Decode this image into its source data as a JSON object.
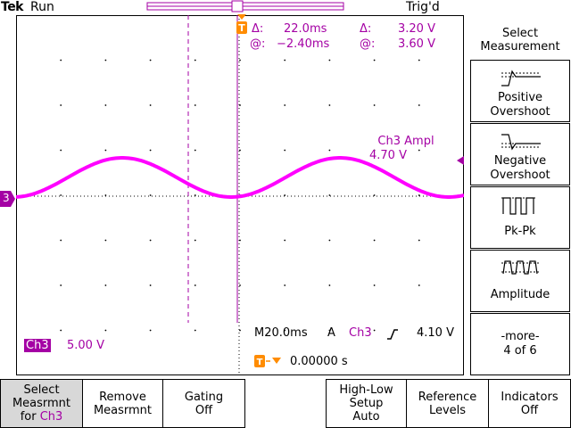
{
  "header": {
    "brand": "Tek",
    "state": "Run",
    "trigger_status": "Trig'd"
  },
  "cursors": {
    "delta_time_label": "Δ:",
    "delta_time": "22.0ms",
    "at_time_label": "@:",
    "at_time": "−2.40ms",
    "delta_volt_label": "Δ:",
    "delta_volt": "3.20 V",
    "at_volt_label": "@:",
    "at_volt": "3.60 V"
  },
  "measurement_readout": {
    "name": "Ch3 Ampl",
    "value": "4.70 V"
  },
  "channel": {
    "marker": "3",
    "label": "Ch3",
    "scale": "5.00 V"
  },
  "timebase": {
    "scale": "M20.0ms",
    "coupling": "A",
    "source": "Ch3",
    "slope_icon": "rising-edge-icon",
    "level": "4.10 V"
  },
  "trigger_position": {
    "value": "0.00000 s"
  },
  "side_menu": {
    "title_line1": "Select",
    "title_line2": "Measurement",
    "items": [
      {
        "line1": "Positive",
        "line2": "Overshoot",
        "icon": "positive-overshoot-icon"
      },
      {
        "line1": "Negative",
        "line2": "Overshoot",
        "icon": "negative-overshoot-icon"
      },
      {
        "line1": "Pk-Pk",
        "line2": "",
        "icon": "pk-pk-icon"
      },
      {
        "line1": "Amplitude",
        "line2": "",
        "icon": "amplitude-icon"
      },
      {
        "line1": "-more-",
        "line2": "4 of 6",
        "icon": ""
      }
    ]
  },
  "bottom_menu": [
    {
      "line1": "Select",
      "line2": "Measrmnt",
      "line3a": "for ",
      "line3b": "Ch3"
    },
    {
      "line1": "Remove",
      "line2": "Measrmnt"
    },
    {
      "line1": "Gating",
      "line2": "Off"
    },
    {
      "line1": "High-Low",
      "line2": "Setup",
      "line3": "Auto"
    },
    {
      "line1": "Reference",
      "line2": "Levels"
    },
    {
      "line1": "Indicators",
      "line2": "Off"
    }
  ],
  "colors": {
    "trace": "#ff00ff",
    "accent": "#a400a4",
    "trigger_marker": "#ff8c00"
  }
}
